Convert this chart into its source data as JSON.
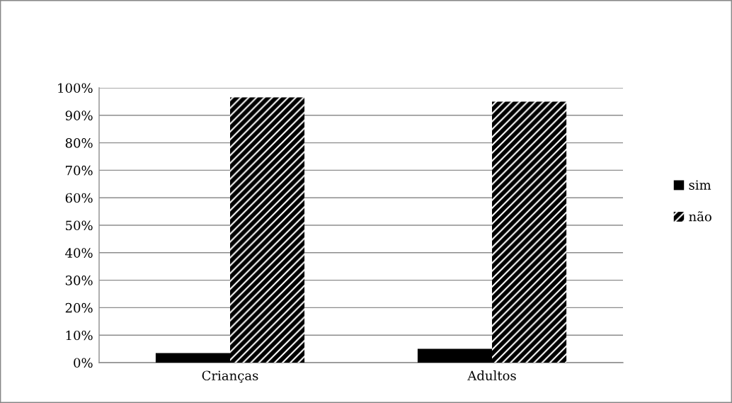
{
  "chart_data": {
    "type": "bar",
    "categories": [
      "Crianças",
      "Adultos"
    ],
    "series": [
      {
        "name": "sim",
        "color": "#000000",
        "values": [
          3.5,
          5
        ]
      },
      {
        "name": "não",
        "color": "#000000",
        "values": [
          96.5,
          95
        ]
      }
    ],
    "ylim": [
      0,
      100
    ],
    "yticks": [
      {
        "value": 0,
        "label": "0%"
      },
      {
        "value": 10,
        "label": "10%"
      },
      {
        "value": 20,
        "label": "20%"
      },
      {
        "value": 30,
        "label": "30%"
      },
      {
        "value": 40,
        "label": "40%"
      },
      {
        "value": 50,
        "label": "50%"
      },
      {
        "value": 60,
        "label": "60%"
      },
      {
        "value": 70,
        "label": "70%"
      },
      {
        "value": 80,
        "label": "80%"
      },
      {
        "value": 90,
        "label": "90%"
      },
      {
        "value": 100,
        "label": "100%"
      }
    ],
    "grid": "y",
    "legend": "right"
  }
}
